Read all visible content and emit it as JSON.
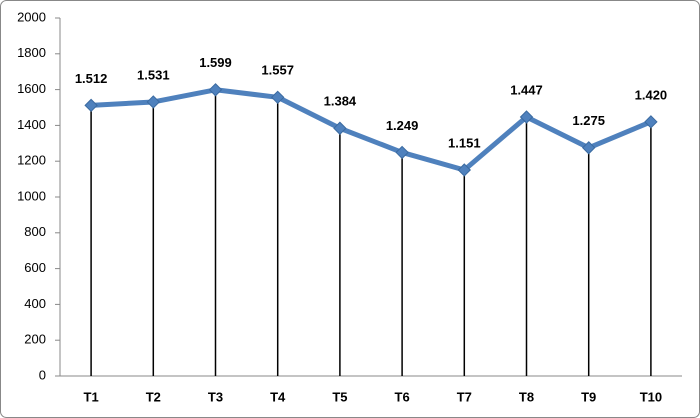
{
  "chart_data": {
    "type": "line",
    "categories": [
      "T1",
      "T2",
      "T3",
      "T4",
      "T5",
      "T6",
      "T7",
      "T8",
      "T9",
      "T10"
    ],
    "values": [
      1512,
      1531,
      1599,
      1557,
      1384,
      1249,
      1151,
      1447,
      1275,
      1420
    ],
    "value_labels": [
      "1.512",
      "1.531",
      "1.599",
      "1.557",
      "1.384",
      "1.249",
      "1.151",
      "1.447",
      "1.275",
      "1.420"
    ],
    "color": "#4f81bd",
    "drop_lines": true,
    "ylim": [
      0,
      2000
    ],
    "yticks": [
      0,
      200,
      400,
      600,
      800,
      1000,
      1200,
      1400,
      1600,
      1800,
      2000
    ],
    "grid": false
  }
}
